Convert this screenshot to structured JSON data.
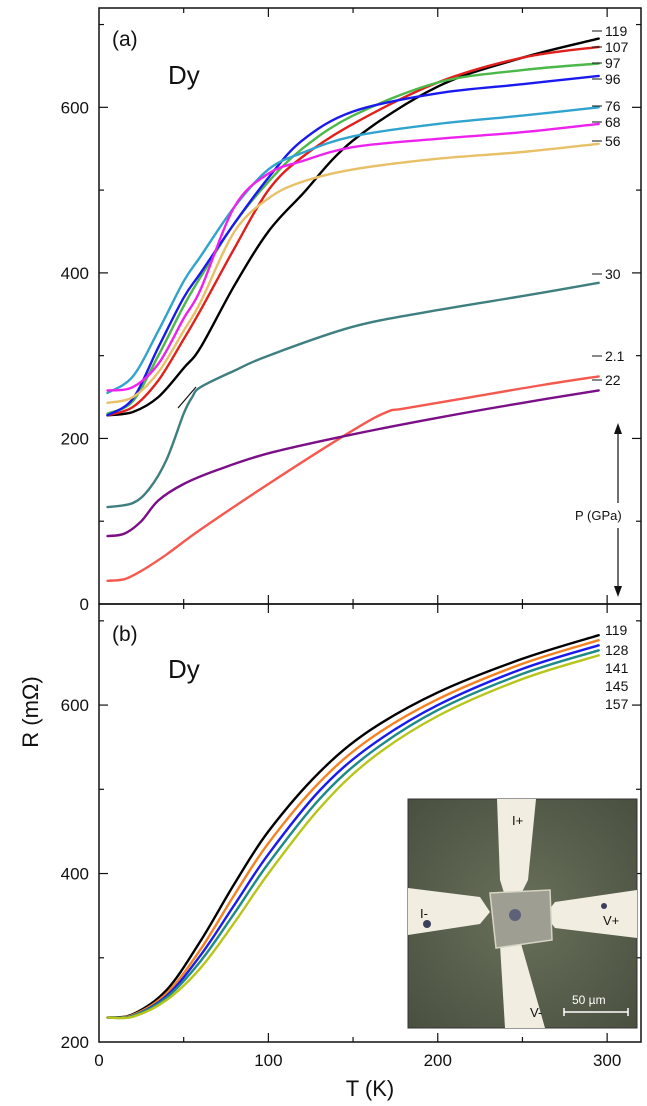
{
  "figure": {
    "x_axis_label": "T (K)",
    "y_axis_label": "R (mΩ)",
    "x_ticks": [
      "0",
      "100",
      "200",
      "300"
    ]
  },
  "chart_data": [
    {
      "type": "line",
      "panel_label": "(a)",
      "annotation": "Dy",
      "xlabel": "T (K)",
      "ylabel": "R (mΩ)",
      "xlim": [
        0,
        320
      ],
      "ylim": [
        0,
        720
      ],
      "y_ticks": [
        "0",
        "200",
        "400",
        "600"
      ],
      "series": [
        {
          "name": "119",
          "color": "#000000",
          "x": [
            5,
            20,
            35,
            50,
            60,
            80,
            100,
            120,
            150,
            200,
            250,
            295
          ],
          "y": [
            228,
            232,
            250,
            285,
            310,
            385,
            450,
            495,
            560,
            625,
            660,
            683
          ]
        },
        {
          "name": "107",
          "color": "#e0201c",
          "x": [
            5,
            20,
            35,
            50,
            60,
            80,
            100,
            120,
            150,
            200,
            250,
            295
          ],
          "y": [
            228,
            238,
            270,
            320,
            355,
            430,
            500,
            540,
            580,
            630,
            660,
            673
          ]
        },
        {
          "name": "97",
          "color": "#4cb84a",
          "x": [
            5,
            20,
            35,
            50,
            60,
            80,
            100,
            120,
            150,
            200,
            250,
            295
          ],
          "y": [
            230,
            245,
            300,
            360,
            395,
            460,
            510,
            550,
            590,
            630,
            645,
            653
          ]
        },
        {
          "name": "96",
          "color": "#1a1aee",
          "x": [
            5,
            20,
            35,
            50,
            60,
            80,
            100,
            120,
            150,
            200,
            250,
            295
          ],
          "y": [
            228,
            248,
            310,
            370,
            400,
            460,
            515,
            560,
            595,
            617,
            628,
            638
          ]
        },
        {
          "name": "76",
          "color": "#31a3cf",
          "x": [
            5,
            20,
            35,
            50,
            60,
            80,
            100,
            120,
            150,
            200,
            250,
            295
          ],
          "y": [
            255,
            275,
            330,
            390,
            420,
            480,
            525,
            545,
            565,
            580,
            590,
            600
          ]
        },
        {
          "name": "68",
          "color": "#ee22ee",
          "x": [
            5,
            20,
            35,
            50,
            60,
            80,
            100,
            120,
            150,
            200,
            250,
            295
          ],
          "y": [
            258,
            262,
            290,
            345,
            380,
            480,
            520,
            535,
            552,
            562,
            570,
            580
          ]
        },
        {
          "name": "56",
          "color": "#e8c067",
          "x": [
            5,
            20,
            35,
            50,
            60,
            80,
            100,
            120,
            150,
            200,
            250,
            295
          ],
          "y": [
            243,
            250,
            280,
            330,
            365,
            450,
            490,
            510,
            525,
            538,
            546,
            556
          ]
        },
        {
          "name": "30",
          "color": "#3f7f7f",
          "x": [
            5,
            20,
            30,
            40,
            50,
            55,
            60,
            80,
            100,
            150,
            200,
            250,
            295
          ],
          "y": [
            117,
            122,
            140,
            175,
            230,
            250,
            262,
            282,
            300,
            335,
            355,
            372,
            388
          ]
        },
        {
          "name": "2.1",
          "color": "#f4584e",
          "x": [
            5,
            15,
            25,
            40,
            60,
            100,
            150,
            170,
            180,
            220,
            260,
            295
          ],
          "y": [
            28,
            30,
            40,
            60,
            90,
            145,
            210,
            232,
            236,
            250,
            264,
            275
          ]
        },
        {
          "name": "22",
          "color": "#7a0f87",
          "x": [
            5,
            15,
            25,
            35,
            50,
            70,
            100,
            150,
            200,
            250,
            295
          ],
          "y": [
            82,
            85,
            100,
            125,
            145,
            162,
            182,
            205,
            225,
            243,
            258
          ]
        }
      ],
      "pressure_arrow_label": "P (GPa)"
    },
    {
      "type": "line",
      "panel_label": "(b)",
      "annotation": "Dy",
      "xlabel": "T (K)",
      "ylabel": "R (mΩ)",
      "xlim": [
        0,
        320
      ],
      "ylim": [
        200,
        720
      ],
      "y_ticks": [
        "200",
        "400",
        "600"
      ],
      "series": [
        {
          "name": "119",
          "color": "#000000",
          "x": [
            5,
            20,
            40,
            60,
            80,
            100,
            130,
            160,
            200,
            250,
            295
          ],
          "y": [
            229,
            233,
            262,
            320,
            388,
            450,
            520,
            570,
            615,
            655,
            683
          ]
        },
        {
          "name": "128",
          "color": "#f58220",
          "x": [
            5,
            20,
            40,
            60,
            80,
            100,
            130,
            160,
            200,
            250,
            295
          ],
          "y": [
            229,
            232,
            258,
            310,
            375,
            436,
            508,
            560,
            607,
            649,
            677
          ]
        },
        {
          "name": "141",
          "color": "#1a1aee",
          "x": [
            5,
            20,
            40,
            60,
            80,
            100,
            130,
            160,
            200,
            250,
            295
          ],
          "y": [
            229,
            231,
            255,
            303,
            363,
            423,
            498,
            551,
            600,
            643,
            671
          ]
        },
        {
          "name": "145",
          "color": "#1e8a88",
          "x": [
            5,
            20,
            40,
            60,
            80,
            100,
            130,
            160,
            200,
            250,
            295
          ],
          "y": [
            229,
            231,
            253,
            296,
            353,
            412,
            488,
            543,
            594,
            637,
            665
          ]
        },
        {
          "name": "157",
          "color": "#b7c51a",
          "x": [
            5,
            20,
            40,
            60,
            80,
            100,
            130,
            160,
            200,
            250,
            295
          ],
          "y": [
            229,
            230,
            250,
            288,
            342,
            400,
            477,
            535,
            587,
            631,
            659
          ]
        }
      ],
      "inset": {
        "contact_labels": [
          "I+",
          "I-",
          "V+",
          "V-"
        ],
        "scale_bar": "50 µm"
      }
    }
  ]
}
